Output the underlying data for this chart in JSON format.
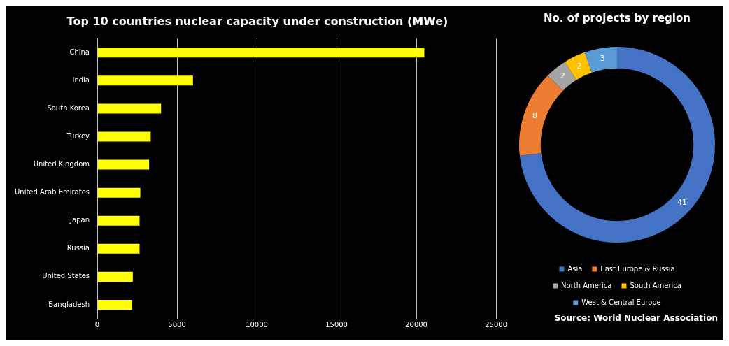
{
  "chart_data": [
    {
      "type": "bar",
      "orientation": "horizontal",
      "title": "Top 10 countries nuclear capacity under construction (MWe)",
      "categories": [
        "China",
        "India",
        "South Korea",
        "Turkey",
        "United Kingdom",
        "United Arab Emirates",
        "Japan",
        "Russia",
        "United States",
        "Bangladesh"
      ],
      "values": [
        20500,
        6000,
        4000,
        3350,
        3250,
        2700,
        2650,
        2650,
        2230,
        2190
      ],
      "color": "#ffff00",
      "xlim": [
        0,
        25000
      ],
      "xticks": [
        0,
        5000,
        10000,
        15000,
        20000,
        25000
      ],
      "grid": "x",
      "legend": false
    },
    {
      "type": "donut",
      "title": "No. of projects by region",
      "categories": [
        "Asia",
        "East Europe & Russia",
        "North America",
        "South America",
        "West & Central Europe"
      ],
      "values": [
        41,
        8,
        2,
        2,
        3
      ],
      "colors": [
        "#4472c4",
        "#ed7d31",
        "#a5a5a5",
        "#ffc000",
        "#5b9bd5"
      ],
      "data_labels": true,
      "legend": "bottom",
      "annotations": [
        "Source: World Nuclear Association"
      ]
    }
  ]
}
